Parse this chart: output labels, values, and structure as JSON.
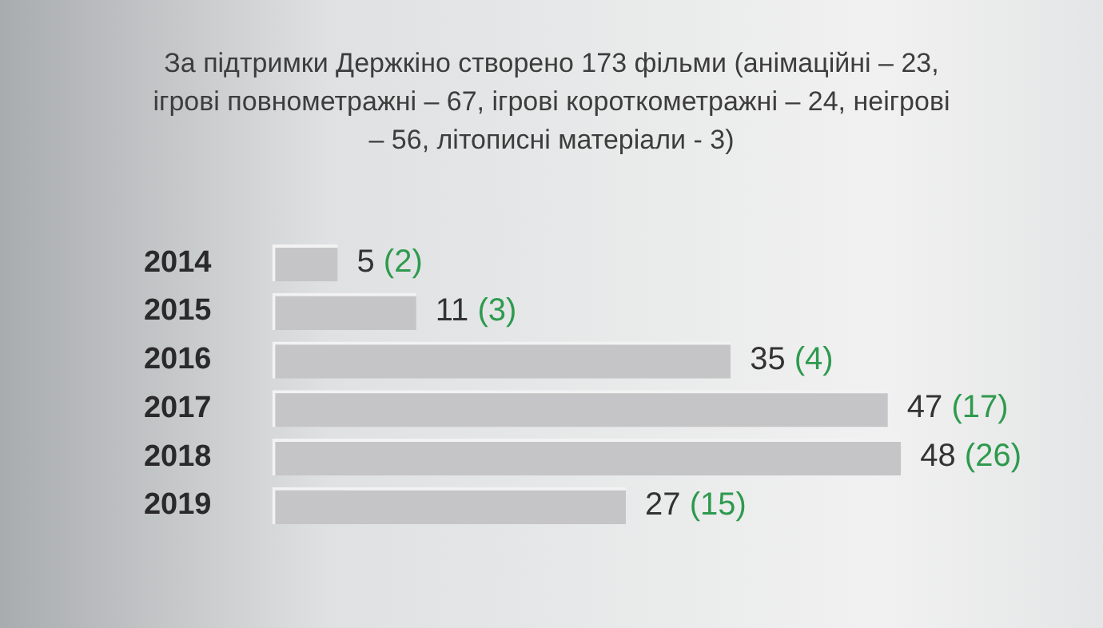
{
  "chart_data": {
    "type": "bar",
    "orientation": "horizontal",
    "title": "За підтримки Держкіно створено 173 фільми (анімаційні – 23, ігрові повнометражні – 67, ігрові короткометражні – 24, неігрові – 56, літописні матеріали - 3)",
    "categories": [
      "2014",
      "2015",
      "2016",
      "2017",
      "2018",
      "2019"
    ],
    "values": [
      5,
      11,
      35,
      47,
      48,
      27
    ],
    "color": "#c5c4c6",
    "value_labels": [
      "5 (2)",
      "11 (3)",
      "35 (4)",
      "47 (17)",
      "48 (26)",
      "27 (15)"
    ],
    "tick_labels": "y",
    "grid": false,
    "legend": false
  }
}
